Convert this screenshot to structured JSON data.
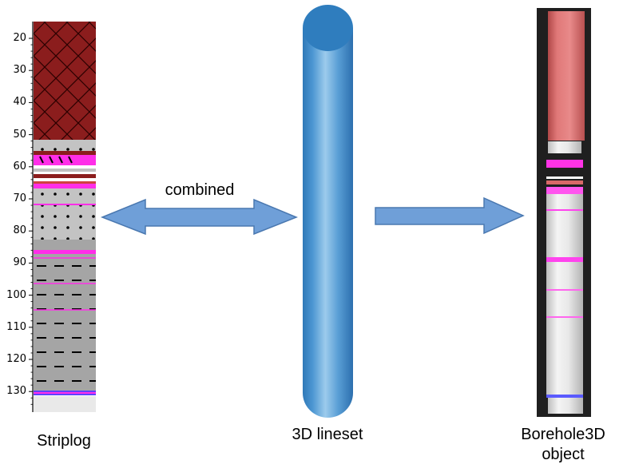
{
  "labels": {
    "combined": "combined",
    "striplog": "Striplog",
    "lineset": "3D lineset",
    "borehole_line1": "Borehole3D",
    "borehole_line2": "object"
  },
  "depth_axis": {
    "ticks": [
      "20",
      "30",
      "40",
      "50",
      "60",
      "70",
      "80",
      "90",
      "100",
      "110",
      "120",
      "130"
    ]
  },
  "colors": {
    "clay_red": "#8b1d1d",
    "sand_gray": "#c0c0c0",
    "shale_gray": "#a6a6a6",
    "magenta": "#ff2ee8",
    "arrow_blue": "#6f9fd8",
    "cylinder_blue": "#4a92cc",
    "borehole_red": "#d86868"
  },
  "icons": {
    "left_arrow": "double-arrow-icon",
    "right_arrow": "right-arrow-icon"
  }
}
